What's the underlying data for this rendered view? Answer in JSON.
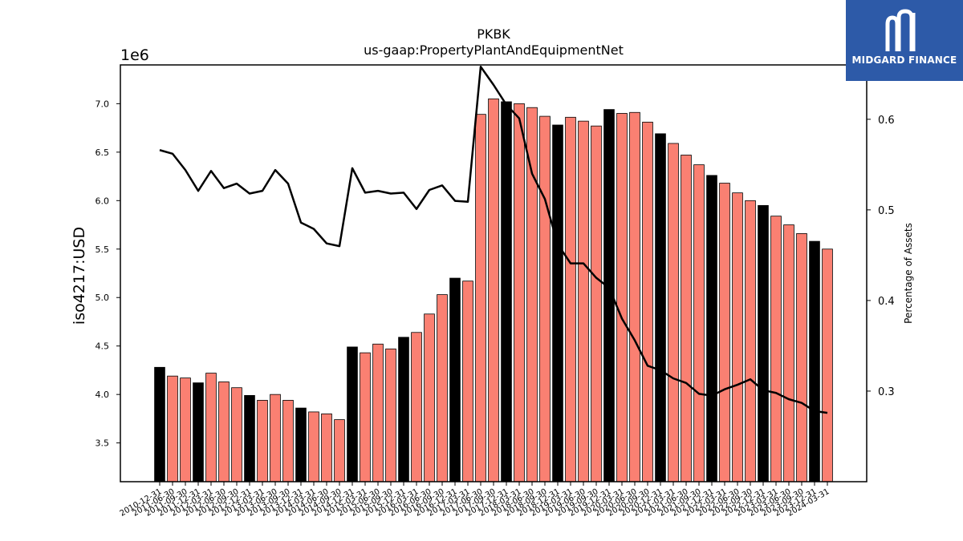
{
  "chart_data": {
    "type": "bar",
    "title": "PKBK",
    "subtitle": "us-gaap:PropertyPlantAndEquipmentNet",
    "ylabel": "iso4217:USD",
    "y2label": "Percentage of Assets",
    "y_offset_label": "1e6",
    "ylim": [
      3.1,
      7.4
    ],
    "y2lim": [
      0.2,
      0.66
    ],
    "yticks": [
      "3.5",
      "4.0",
      "4.5",
      "5.0",
      "5.5",
      "6.0",
      "6.5",
      "7.0"
    ],
    "y2ticks": [
      "0.3",
      "0.4",
      "0.5",
      "0.6"
    ],
    "categories": [
      "2010-12-31",
      "2011-06-30",
      "2011-09-30",
      "2011-12-31",
      "2012-03-31",
      "2012-06-30",
      "2012-09-30",
      "2012-12-31",
      "2013-03-31",
      "2013-06-30",
      "2013-09-30",
      "2013-12-31",
      "2014-03-31",
      "2014-06-30",
      "2014-09-30",
      "2014-12-31",
      "2015-03-31",
      "2015-06-30",
      "2015-09-30",
      "2015-12-31",
      "2016-03-31",
      "2016-06-30",
      "2016-09-30",
      "2016-12-31",
      "2017-03-31",
      "2017-06-30",
      "2017-09-30",
      "2017-12-31",
      "2018-03-31",
      "2018-06-30",
      "2018-09-30",
      "2018-12-31",
      "2019-03-31",
      "2019-06-30",
      "2019-09-30",
      "2019-12-31",
      "2020-03-31",
      "2020-06-30",
      "2020-09-30",
      "2020-12-31",
      "2021-03-31",
      "2021-06-30",
      "2021-09-30",
      "2021-12-31",
      "2022-03-31",
      "2022-06-30",
      "2022-09-30",
      "2022-12-31",
      "2023-03-31",
      "2023-06-30",
      "2023-09-30",
      "2023-12-31",
      "2024-03-31"
    ],
    "series": [
      {
        "type": "bar",
        "axis": "left",
        "values": [
          4.28,
          4.19,
          4.17,
          4.12,
          4.22,
          4.13,
          4.07,
          3.99,
          3.94,
          4.0,
          3.94,
          3.86,
          3.82,
          3.8,
          3.74,
          4.49,
          4.43,
          4.52,
          4.47,
          4.59,
          4.64,
          4.83,
          5.03,
          5.2,
          5.17,
          6.89,
          7.05,
          7.02,
          7.0,
          6.96,
          6.87,
          6.78,
          6.86,
          6.82,
          6.77,
          6.94,
          6.9,
          6.91,
          6.81,
          6.69,
          6.59,
          6.47,
          6.37,
          6.26,
          6.18,
          6.08,
          6.0,
          5.95,
          5.84,
          5.75,
          5.66,
          5.58,
          5.5
        ],
        "highlight": [
          true,
          false,
          false,
          true,
          false,
          false,
          false,
          true,
          false,
          false,
          false,
          true,
          false,
          false,
          false,
          true,
          false,
          false,
          false,
          true,
          false,
          false,
          false,
          true,
          false,
          false,
          false,
          true,
          false,
          false,
          false,
          true,
          false,
          false,
          false,
          true,
          false,
          false,
          false,
          true,
          false,
          false,
          false,
          true,
          false,
          false,
          false,
          true,
          false,
          false,
          false,
          true,
          false
        ]
      },
      {
        "type": "line",
        "axis": "right",
        "values": [
          0.566,
          0.562,
          0.544,
          0.521,
          0.543,
          0.524,
          0.529,
          0.518,
          0.521,
          0.544,
          0.529,
          0.486,
          0.479,
          0.463,
          0.46,
          0.546,
          0.519,
          0.521,
          0.518,
          0.519,
          0.501,
          0.522,
          0.527,
          0.51,
          0.509,
          0.658,
          0.638,
          0.616,
          0.601,
          0.54,
          0.512,
          0.462,
          0.441,
          0.441,
          0.425,
          0.414,
          0.38,
          0.356,
          0.328,
          0.323,
          0.314,
          0.309,
          0.297,
          0.295,
          0.302,
          0.307,
          0.313,
          0.301,
          0.298,
          0.291,
          0.287,
          0.278,
          0.276
        ]
      }
    ],
    "colors": {
      "bar": "#fa8072",
      "bar_highlight": "#000000",
      "line": "#000000"
    }
  },
  "logo": {
    "text": "MIDGARD FINANCE",
    "brand_color": "#2d5aa8"
  }
}
